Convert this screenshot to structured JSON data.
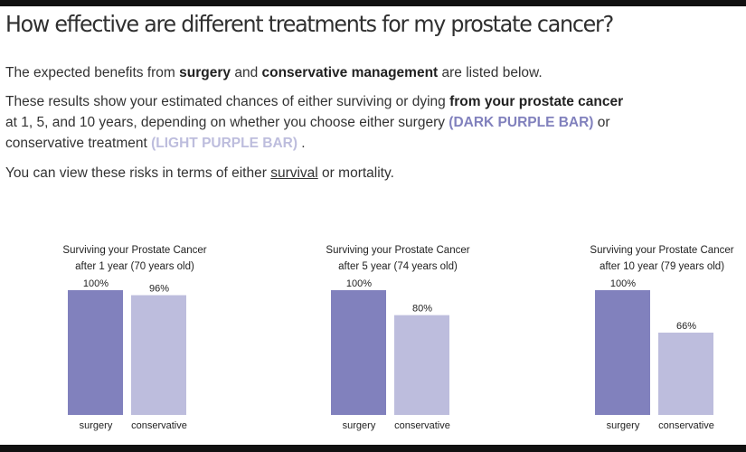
{
  "page": {
    "title": "How effective are different treatments for my prostate cancer?",
    "intro": {
      "prefix": "The expected benefits from ",
      "surgery": "surgery",
      "and": " and ",
      "conservative": "conservative management",
      "suffix": " are listed below."
    },
    "explanation": {
      "part1": "These results show your estimated chances of either surviving or dying ",
      "bold": "from your prostate cancer",
      "part2": " at 1, 5, and 10 years, depending on whether you choose either surgery ",
      "dark_label": "(DARK PURPLE BAR)",
      "part3": " or conservative treatment ",
      "light_label": "(LIGHT PURPLE BAR)",
      "part4": " ."
    },
    "view_toggle": {
      "prefix": "You can view these risks in terms of either ",
      "survival": "survival",
      "or": " or ",
      "mortality": "mortality",
      "suffix": "."
    }
  },
  "colors": {
    "surgery": "#8181bd",
    "conservative": "#bdbddd"
  },
  "chart_data": [
    {
      "type": "bar",
      "title_line1": "Surviving your Prostate Cancer",
      "title_line2": "after 1 year (70 years old)",
      "categories": [
        "surgery",
        "conservative"
      ],
      "values": [
        100,
        96
      ],
      "labels": [
        "100%",
        "96%"
      ],
      "ylim": [
        0,
        100
      ]
    },
    {
      "type": "bar",
      "title_line1": "Surviving your Prostate Cancer",
      "title_line2": "after 5 year (74 years old)",
      "categories": [
        "surgery",
        "conservative"
      ],
      "values": [
        100,
        80
      ],
      "labels": [
        "100%",
        "80%"
      ],
      "ylim": [
        0,
        100
      ]
    },
    {
      "type": "bar",
      "title_line1": "Surviving your Prostate Cancer",
      "title_line2": "after 10 year (79 years old)",
      "categories": [
        "surgery",
        "conservative"
      ],
      "values": [
        100,
        66
      ],
      "labels": [
        "100%",
        "66%"
      ],
      "ylim": [
        0,
        100
      ]
    }
  ]
}
